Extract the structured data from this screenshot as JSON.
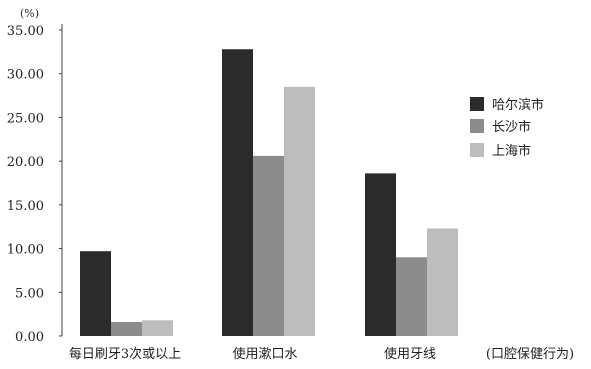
{
  "chart_data": {
    "type": "bar",
    "unit_label": "(%)",
    "x_axis_title": "(口腔保健行为)",
    "categories": [
      "每日刷牙3次或以上",
      "使用漱口水",
      "使用牙线"
    ],
    "series": [
      {
        "name": "哈尔滨市",
        "color": "#2b2b2b",
        "values": [
          9.7,
          32.8,
          18.6
        ]
      },
      {
        "name": "长沙市",
        "color": "#8c8c8c",
        "values": [
          1.6,
          20.6,
          9.0
        ]
      },
      {
        "name": "上海市",
        "color": "#bdbdbd",
        "values": [
          1.8,
          28.5,
          12.3
        ]
      }
    ],
    "y_ticks": [
      "0.00",
      "5.00",
      "10.00",
      "15.00",
      "20.00",
      "25.00",
      "30.00",
      "35.00"
    ],
    "ylim": [
      0,
      35
    ],
    "legend_position": "right",
    "grid": false
  }
}
